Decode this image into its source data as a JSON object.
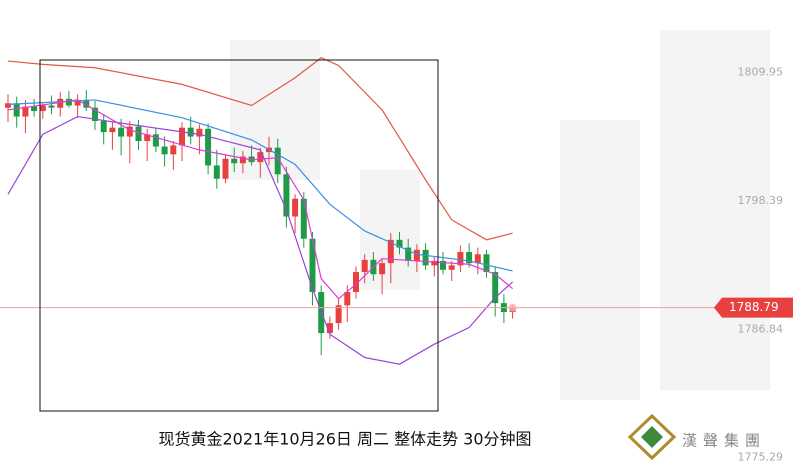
{
  "chart_data": {
    "type": "candlestick",
    "title": "现货黄金2021年10月26日  周二  整体走势  30分钟图",
    "brand": "漢聲集團",
    "up_color": "#e8403f",
    "down_color": "#1e9c45",
    "open": [
      1806.8,
      1807.2,
      1806.0,
      1806.9,
      1806.5,
      1807.0,
      1806.8,
      1807.6,
      1807.0,
      1807.5,
      1806.8,
      1805.6,
      1804.6,
      1805.0,
      1804.2,
      1805.1,
      1803.8,
      1804.4,
      1803.3,
      1802.6,
      1803.4,
      1805.0,
      1804.2,
      1804.9,
      1801.6,
      1800.4,
      1802.2,
      1801.8,
      1802.4,
      1801.9,
      1802.8,
      1803.2,
      1800.8,
      1797.0,
      1798.6,
      1795.0,
      1790.2,
      1786.5,
      1787.4,
      1789.0,
      1790.2,
      1792.0,
      1793.1,
      1791.8,
      1792.8,
      1794.9,
      1794.2,
      1793.0,
      1794.0,
      1792.6,
      1793.0,
      1792.2,
      1792.6,
      1793.8,
      1792.8,
      1793.6,
      1792.0,
      1789.2,
      1788.4
    ],
    "high": [
      1808.0,
      1807.8,
      1807.5,
      1807.6,
      1807.3,
      1807.9,
      1808.2,
      1808.3,
      1808.0,
      1808.4,
      1807.4,
      1806.2,
      1805.5,
      1805.8,
      1805.6,
      1805.7,
      1804.9,
      1805.0,
      1804.2,
      1803.8,
      1805.5,
      1806.0,
      1805.3,
      1805.4,
      1803.0,
      1802.6,
      1803.2,
      1802.9,
      1803.4,
      1803.2,
      1804.2,
      1804.0,
      1801.5,
      1799.0,
      1799.2,
      1795.6,
      1790.8,
      1788.0,
      1789.6,
      1790.8,
      1792.5,
      1793.6,
      1793.8,
      1793.2,
      1795.5,
      1795.6,
      1795.0,
      1794.5,
      1794.6,
      1793.4,
      1793.8,
      1793.0,
      1794.4,
      1794.6,
      1794.2,
      1794.0,
      1792.5,
      1790.0,
      1789.0
    ],
    "low": [
      1805.5,
      1805.0,
      1804.5,
      1806.0,
      1805.8,
      1806.2,
      1806.0,
      1806.8,
      1805.9,
      1806.5,
      1804.8,
      1803.5,
      1803.0,
      1802.5,
      1801.8,
      1803.0,
      1802.0,
      1802.8,
      1801.5,
      1801.2,
      1802.0,
      1803.5,
      1802.6,
      1800.8,
      1799.5,
      1800.0,
      1801.0,
      1800.9,
      1801.6,
      1800.5,
      1801.6,
      1800.0,
      1796.0,
      1795.5,
      1794.2,
      1789.0,
      1784.5,
      1786.0,
      1786.8,
      1787.5,
      1789.6,
      1791.0,
      1791.2,
      1790.0,
      1791.0,
      1793.6,
      1792.5,
      1792.0,
      1792.2,
      1791.6,
      1791.8,
      1791.2,
      1792.0,
      1792.4,
      1791.8,
      1791.5,
      1788.0,
      1787.4,
      1787.8
    ],
    "close": [
      1807.2,
      1806.0,
      1806.9,
      1806.5,
      1807.0,
      1806.8,
      1807.6,
      1807.0,
      1807.5,
      1806.8,
      1805.6,
      1804.6,
      1805.0,
      1804.2,
      1805.1,
      1803.8,
      1804.4,
      1803.3,
      1802.6,
      1803.4,
      1805.0,
      1804.2,
      1804.9,
      1801.6,
      1800.4,
      1802.2,
      1801.8,
      1802.4,
      1801.9,
      1802.8,
      1803.2,
      1800.8,
      1797.0,
      1798.6,
      1795.0,
      1790.2,
      1786.5,
      1787.4,
      1789.0,
      1790.2,
      1792.0,
      1793.1,
      1791.8,
      1792.8,
      1794.9,
      1794.2,
      1793.0,
      1794.0,
      1792.6,
      1793.0,
      1792.2,
      1792.6,
      1793.8,
      1792.8,
      1793.6,
      1792.0,
      1789.2,
      1788.4,
      1788.79
    ],
    "series": [
      {
        "color": "#e05a44",
        "x": [
          0,
          4,
          10,
          20,
          28,
          33,
          36,
          38,
          43,
          48,
          51,
          55,
          58
        ],
        "values": [
          1811.0,
          1810.7,
          1810.4,
          1808.9,
          1807.0,
          1809.5,
          1811.3,
          1810.6,
          1806.6,
          1800.3,
          1796.7,
          1794.9,
          1795.5
        ]
      },
      {
        "color": "#9b45d6",
        "x": [
          0,
          4,
          8,
          14,
          22,
          29,
          32,
          35,
          37,
          41,
          45,
          49,
          53,
          56,
          58
        ],
        "values": [
          1799.0,
          1804.4,
          1806.0,
          1805.3,
          1804.4,
          1803.0,
          1797.6,
          1790.5,
          1786.4,
          1784.3,
          1783.7,
          1785.5,
          1787.0,
          1789.7,
          1791.1
        ]
      },
      {
        "color": "#3d8fe0",
        "x": [
          0,
          10,
          20,
          28,
          33,
          37,
          41,
          47,
          53,
          58
        ],
        "values": [
          1807.1,
          1807.5,
          1805.9,
          1803.9,
          1801.7,
          1798.1,
          1795.7,
          1793.6,
          1793.0,
          1792.1
        ]
      },
      {
        "color": "#e03ad8",
        "x": [
          0,
          8,
          14,
          22,
          28,
          31,
          34,
          36,
          38,
          40,
          43,
          47,
          53,
          56,
          58
        ],
        "values": [
          1806.6,
          1807.5,
          1804.8,
          1803.0,
          1802.1,
          1802.3,
          1798.5,
          1791.4,
          1789.6,
          1790.9,
          1793.2,
          1793.0,
          1792.7,
          1791.8,
          1790.5
        ]
      }
    ],
    "current_price": 1788.79,
    "ylim": [
      1774.8,
      1816.5
    ],
    "yticks": [
      1775.29,
      1786.84,
      1798.39,
      1809.95
    ]
  }
}
